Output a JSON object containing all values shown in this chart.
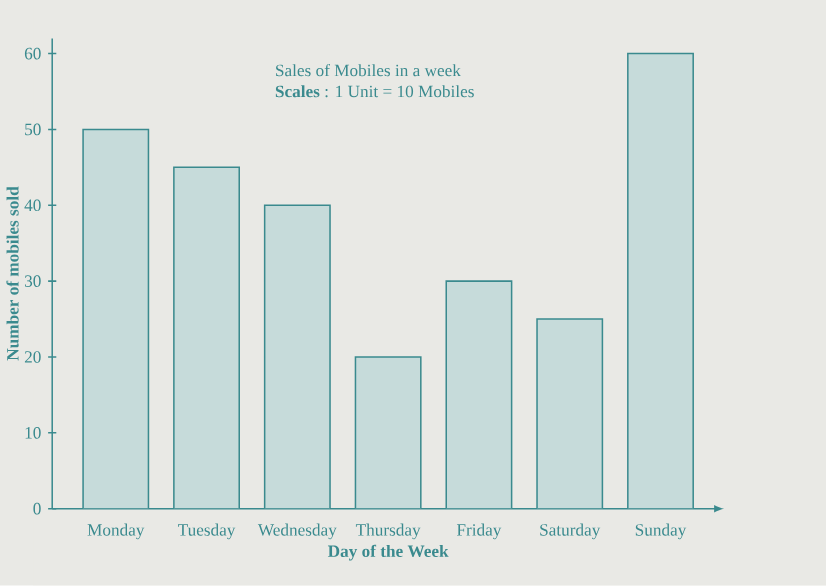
{
  "chart_data": {
    "type": "bar",
    "title": "Sales of Mobiles in a week",
    "subtitle": "**Scales** : 1 Unit = 10 Mobiles",
    "xlabel": "Day of the Week",
    "ylabel": "Number of mobiles sold",
    "categories": [
      "Monday",
      "Tuesday",
      "Wednesday",
      "Thursday",
      "Friday",
      "Saturday",
      "Sunday"
    ],
    "values": [
      50,
      45,
      40,
      20,
      30,
      25,
      60
    ],
    "color": "#c6dbda",
    "ylim": [
      0,
      62
    ],
    "yticks": [
      0,
      10,
      20,
      30,
      40,
      50,
      60
    ]
  }
}
